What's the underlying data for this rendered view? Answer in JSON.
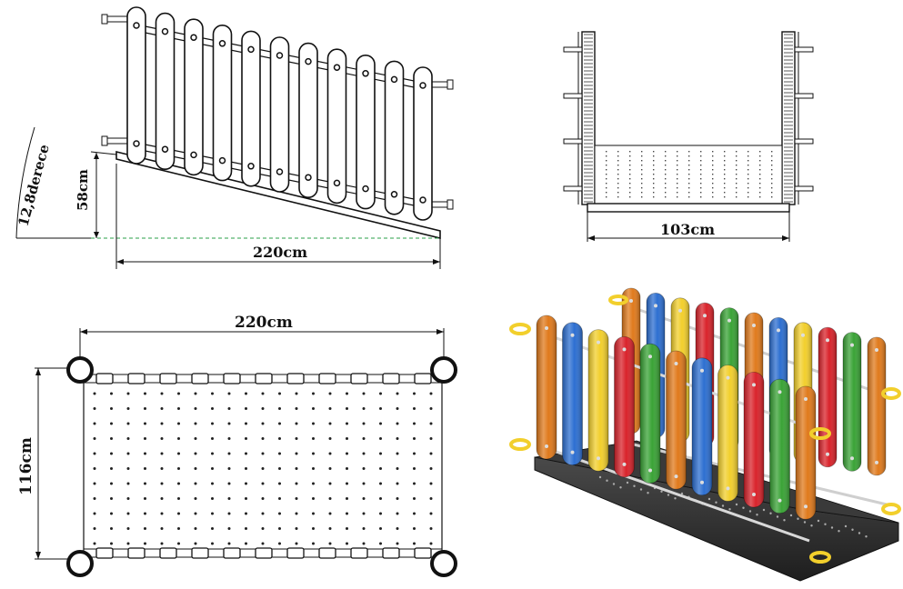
{
  "side_view": {
    "angle_label": "12,8derece",
    "height_label": "58cm",
    "length_label": "220cm"
  },
  "end_view": {
    "width_label": "103cm"
  },
  "top_view": {
    "length_label": "220cm",
    "width_label": "116cm"
  },
  "render_view": {
    "colors": [
      "#e07a1c",
      "#2d6fd1",
      "#f2cf2c",
      "#d9232b",
      "#3aa336"
    ]
  }
}
